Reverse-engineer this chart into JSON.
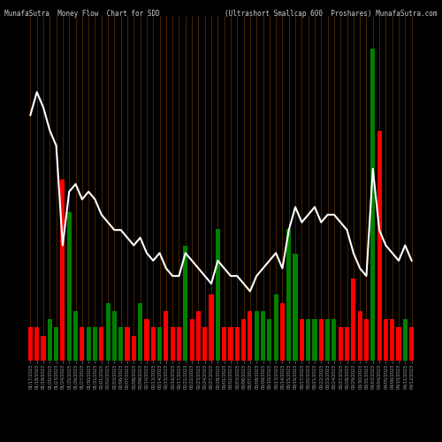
{
  "title_left": "MunafaSutra  Money Flow  Chart for SDD",
  "title_right": "(Ultrashort Smallcap 600  Proshares) MunafaSutra.com",
  "bg_color": "#000000",
  "bar_color_pos": "#00cc00",
  "bar_color_neg": "#cc0000",
  "line_color": "#ffffff",
  "grid_color": "#8B4500",
  "categories": [
    "01/17/2023",
    "01/18/2023",
    "01/19/2023",
    "01/20/2023",
    "01/23/2023",
    "01/24/2023",
    "01/25/2023",
    "01/26/2023",
    "01/27/2023",
    "01/30/2023",
    "01/31/2023",
    "02/01/2023",
    "02/02/2023",
    "02/03/2023",
    "02/06/2023",
    "02/07/2023",
    "02/08/2023",
    "02/09/2023",
    "02/10/2023",
    "02/13/2023",
    "02/14/2023",
    "02/15/2023",
    "02/16/2023",
    "02/17/2023",
    "02/21/2023",
    "02/22/2023",
    "02/23/2023",
    "02/24/2023",
    "02/27/2023",
    "02/28/2023",
    "03/01/2023",
    "03/02/2023",
    "03/03/2023",
    "03/06/2023",
    "03/07/2023",
    "03/08/2023",
    "03/09/2023",
    "03/10/2023",
    "03/13/2023",
    "03/14/2023",
    "03/15/2023",
    "03/16/2023",
    "03/17/2023",
    "03/20/2023",
    "03/21/2023",
    "03/22/2023",
    "03/23/2023",
    "03/24/2023",
    "03/27/2023",
    "03/28/2023",
    "03/29/2023",
    "03/30/2023",
    "03/31/2023",
    "04/03/2023",
    "04/04/2023",
    "04/05/2023",
    "04/06/2023",
    "04/10/2023",
    "04/11/2023",
    "04/12/2023"
  ],
  "bar_values": [
    4,
    4,
    3,
    5,
    4,
    22,
    18,
    6,
    4,
    4,
    4,
    4,
    7,
    6,
    4,
    4,
    3,
    7,
    5,
    4,
    4,
    6,
    4,
    4,
    14,
    5,
    6,
    4,
    8,
    16,
    4,
    4,
    4,
    5,
    6,
    6,
    6,
    5,
    8,
    7,
    16,
    13,
    5,
    5,
    5,
    5,
    5,
    5,
    4,
    4,
    10,
    6,
    5,
    38,
    28,
    5,
    5,
    4,
    5,
    4
  ],
  "bar_colors": [
    "red",
    "red",
    "red",
    "green",
    "green",
    "red",
    "green",
    "green",
    "red",
    "green",
    "green",
    "red",
    "green",
    "green",
    "green",
    "red",
    "red",
    "green",
    "red",
    "red",
    "green",
    "red",
    "red",
    "red",
    "green",
    "red",
    "red",
    "red",
    "red",
    "green",
    "red",
    "red",
    "red",
    "red",
    "red",
    "green",
    "green",
    "green",
    "green",
    "red",
    "green",
    "green",
    "red",
    "green",
    "green",
    "red",
    "green",
    "green",
    "red",
    "red",
    "red",
    "red",
    "red",
    "green",
    "red",
    "red",
    "red",
    "red",
    "green",
    "red"
  ],
  "line_values": [
    72,
    75,
    73,
    70,
    68,
    55,
    62,
    63,
    61,
    62,
    61,
    59,
    58,
    57,
    57,
    56,
    55,
    56,
    54,
    53,
    54,
    52,
    51,
    51,
    54,
    53,
    52,
    51,
    50,
    53,
    52,
    51,
    51,
    50,
    49,
    51,
    52,
    53,
    54,
    52,
    57,
    60,
    58,
    59,
    60,
    58,
    59,
    59,
    58,
    57,
    54,
    52,
    51,
    65,
    57,
    55,
    54,
    53,
    55,
    53
  ],
  "ylim_bar": [
    0,
    42
  ],
  "ylim_line": [
    40,
    85
  ]
}
